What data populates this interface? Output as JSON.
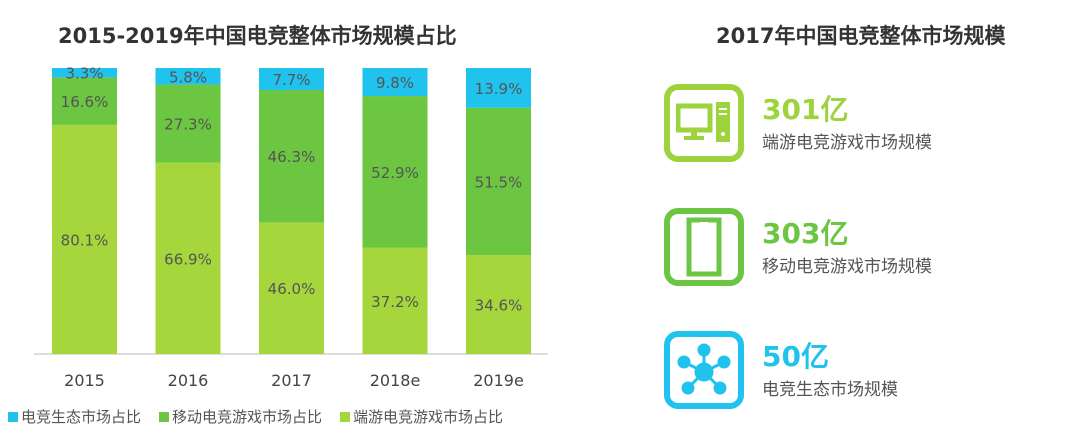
{
  "chart_data": {
    "type": "bar",
    "stacked": true,
    "title": "2015-2019年中国电竞整体市场规模占比",
    "categories": [
      "2015",
      "2016",
      "2017",
      "2018e",
      "2019e"
    ],
    "ylim": [
      0,
      100
    ],
    "grid": false,
    "legend_position": "bottom",
    "series": [
      {
        "name": "端游电竞游戏市场占比",
        "color": "#a5d63c",
        "values": [
          80.1,
          66.9,
          46.0,
          37.2,
          34.6
        ],
        "labels": [
          "80.1%",
          "66.9%",
          "46.0%",
          "37.2%",
          "34.6%"
        ]
      },
      {
        "name": "移动电竞游戏市场占比",
        "color": "#6cc641",
        "values": [
          16.6,
          27.3,
          46.3,
          52.9,
          51.5
        ],
        "labels": [
          "16.6%",
          "27.3%",
          "46.3%",
          "52.9%",
          "51.5%"
        ]
      },
      {
        "name": "电竞生态市场占比",
        "color": "#1fc3ee",
        "values": [
          3.3,
          5.8,
          7.7,
          9.8,
          13.9
        ],
        "labels": [
          "3.3%",
          "5.8%",
          "7.7%",
          "9.8%",
          "13.9%"
        ]
      }
    ]
  },
  "right": {
    "title": "2017年中国电竞整体市场规模",
    "cards": [
      {
        "value": "301亿",
        "label": "端游电竞游戏市场规模",
        "color": "#9dd33c",
        "icon": "desktop-computer-icon"
      },
      {
        "value": "303亿",
        "label": "移动电竞游戏市场规模",
        "color": "#6cc644",
        "icon": "mobile-phone-icon"
      },
      {
        "value": "50亿",
        "label": "电竞生态市场规模",
        "color": "#1fc3ee",
        "icon": "network-hub-icon"
      }
    ]
  }
}
